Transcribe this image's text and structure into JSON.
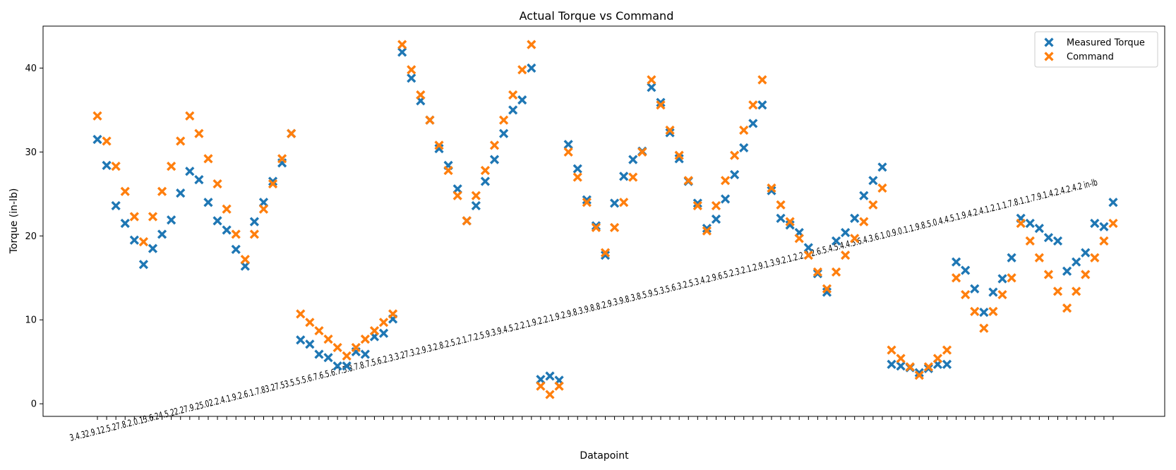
{
  "chart_data": {
    "type": "scatter",
    "title": "Actual Torque vs Command",
    "xlabel": "Datapoint",
    "ylabel": "Torque (in-lb)",
    "ylim": [
      -1.5,
      45
    ],
    "yticks": [
      0,
      10,
      20,
      30,
      40
    ],
    "grid": false,
    "legend_position": "top-right",
    "marker": "X",
    "series": [
      {
        "name": "Measured Torque",
        "color": "#1f77b4",
        "values": [
          31.5,
          28.4,
          23.6,
          21.5,
          19.5,
          16.6,
          18.5,
          20.2,
          21.9,
          25.1,
          27.7,
          26.7,
          24.0,
          21.8,
          20.7,
          18.4,
          16.4,
          21.7,
          24.0,
          26.5,
          28.7,
          32.2,
          7.6,
          7.1,
          5.9,
          5.5,
          4.5,
          4.5,
          6.2,
          5.9,
          8.0,
          8.4,
          10.1,
          41.9,
          38.8,
          36.1,
          33.8,
          30.4,
          28.4,
          25.6,
          21.8,
          23.6,
          26.5,
          29.1,
          32.2,
          35.0,
          36.2,
          40.0,
          2.9,
          3.3,
          2.8,
          30.9,
          28.0,
          24.3,
          21.2,
          17.7,
          23.9,
          27.1,
          29.1,
          30.1,
          37.7,
          35.9,
          32.3,
          29.2,
          26.5,
          23.9,
          20.9,
          22.0,
          24.4,
          27.3,
          30.5,
          33.4,
          35.6,
          25.4,
          22.1,
          21.3,
          20.4,
          18.6,
          15.5,
          13.3,
          19.4,
          20.4,
          22.1,
          24.8,
          26.6,
          28.2,
          4.7,
          4.5,
          4.3,
          3.7,
          4.2,
          4.7,
          4.7,
          16.9,
          15.9,
          13.7,
          10.9,
          13.3,
          14.9,
          17.4,
          22.1,
          21.5,
          20.9,
          19.8,
          19.4,
          15.8,
          16.9,
          18.0,
          21.5,
          21.1,
          24.0
        ]
      },
      {
        "name": "Command",
        "color": "#ff7f0e",
        "values": [
          34.3,
          31.3,
          28.3,
          25.3,
          22.3,
          19.3,
          22.3,
          25.3,
          28.3,
          31.3,
          34.3,
          32.2,
          29.2,
          26.2,
          23.2,
          20.2,
          17.2,
          20.2,
          23.2,
          26.2,
          29.2,
          32.2,
          10.7,
          9.7,
          8.7,
          7.7,
          6.7,
          5.7,
          6.7,
          7.7,
          8.7,
          9.7,
          10.7,
          42.8,
          39.8,
          36.8,
          33.8,
          30.8,
          27.8,
          24.8,
          21.8,
          24.8,
          27.8,
          30.8,
          33.8,
          36.8,
          39.8,
          42.8,
          2.1,
          1.1,
          2.1,
          30.0,
          27.0,
          24.0,
          21.0,
          18.0,
          21.0,
          24.0,
          27.0,
          30.0,
          38.6,
          35.6,
          32.6,
          29.6,
          26.6,
          23.6,
          20.6,
          23.6,
          26.6,
          29.6,
          32.6,
          35.6,
          38.6,
          25.7,
          23.7,
          21.7,
          19.7,
          17.7,
          15.7,
          13.7,
          15.7,
          17.7,
          19.7,
          21.7,
          23.7,
          25.7,
          6.4,
          5.4,
          4.4,
          3.4,
          4.4,
          5.4,
          6.4,
          15.0,
          13.0,
          11.0,
          9.0,
          11.0,
          13.0,
          15.0,
          21.5,
          19.4,
          17.4,
          15.4,
          13.4,
          11.4,
          13.4,
          15.4,
          17.4,
          19.4,
          21.5
        ]
      }
    ],
    "x_tick_text": "3.4.32.9.12.5.27.8.2.0.13.6.24.5.22.27.9.25.02.2.4.1.9.2.6.1.7.83.27.53.5.5.5.6.7.6.5.6.7.5.8.7.8.7.5.6.2.3.3.27.3.2.9.3.2.8.2.5.2.1.7.2.5.9.3.9.4.5.2.2.1.9.2.2.1.9.2.9.8.3.9.8.8.2.9.3.9.8.3.8.5.9.5.3.5.6.3.2.5.3.4.2.9.6.5.2.3.2.1.2.9.1.3.9.2.1.2.2.2.2.6.5.4.5.4.4.5.6.4.3.6.1.0.9.0.1.1.9.8.5.0.4.4.5.1.9.4.2.4.1.2.1.1.7.8.1.1.7.9.1.4.2.4.2.4.2 in-lb"
  }
}
